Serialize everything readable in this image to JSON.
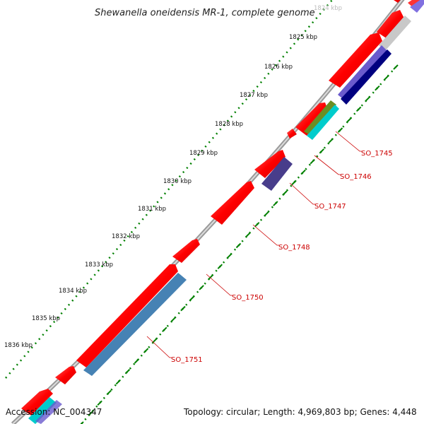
{
  "title": "Shewanella oneidensis MR-1, complete genome",
  "footer": {
    "accession": "Accession: NC_004347",
    "summary": "Topology: circular; Length: 4,969,803 bp; Genes: 4,448"
  },
  "ticks": [
    "1824 kbp",
    "1825 kbp",
    "1826 kbp",
    "1827 kbp",
    "1828 kbp",
    "1829 kbp",
    "1830 kbp",
    "1831 kbp",
    "1832 kbp",
    "1833 kbp",
    "1834 kbp",
    "1835 kbp",
    "1836 kbp"
  ],
  "gene_labels": [
    "SO_1745",
    "SO_1746",
    "SO_1747",
    "SO_1748",
    "SO_1750",
    "SO_1751"
  ],
  "colors": {
    "cds": "#ff0000",
    "backbone": "#888888",
    "tick": "#008000",
    "label": "#cc0000",
    "steelblue": "#4682b4",
    "slateblue": "#6a5acd",
    "navy": "#000080",
    "olive": "#6b8e23",
    "cyan": "#00cccc",
    "silver": "#c0c0c0"
  }
}
